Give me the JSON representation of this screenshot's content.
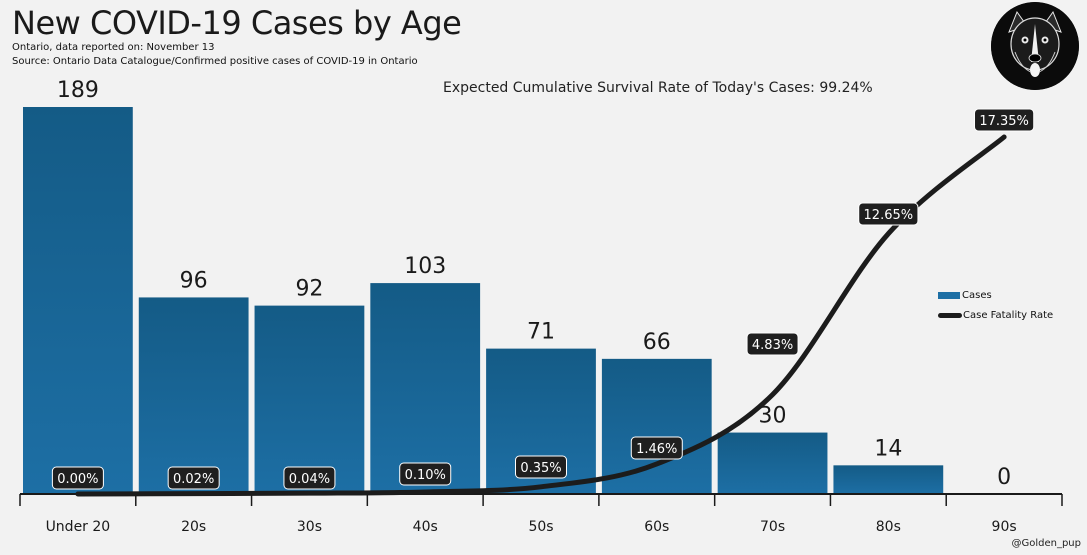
{
  "header": {
    "title": "New COVID-19 Cases by Age",
    "subtitle": "Ontario, data reported on: November 13",
    "source": "Source: Ontario Data Catalogue/Confirmed positive cases of COVID-19 in Ontario"
  },
  "annotation": "Expected Cumulative Survival Rate of Today's Cases: 99.24%",
  "watermark": "@Golden_pup",
  "logo_icon": "dog-logo-icon",
  "legend": {
    "placement": "right",
    "items": [
      {
        "label": "Cases",
        "kind": "bar"
      },
      {
        "label": "Case Fatality Rate",
        "kind": "line"
      }
    ]
  },
  "colors": {
    "bar_top": "#145b86",
    "bar_bottom": "#1d6fa5",
    "line": "#1c1c1c",
    "label_box": "#1f1f1f",
    "label_text": "#ffffff",
    "background": "#f2f2f2"
  },
  "chart_data": {
    "type": "bar",
    "categories": [
      "Under 20",
      "20s",
      "30s",
      "40s",
      "50s",
      "60s",
      "70s",
      "80s",
      "90s"
    ],
    "series": [
      {
        "name": "Cases",
        "type": "bar",
        "values": [
          189,
          96,
          92,
          103,
          71,
          66,
          30,
          14,
          0
        ],
        "labels": [
          "189",
          "96",
          "92",
          "103",
          "71",
          "66",
          "30",
          "14",
          "0"
        ]
      },
      {
        "name": "Case Fatality Rate",
        "type": "line",
        "values": [
          0.0,
          0.02,
          0.04,
          0.1,
          0.35,
          1.46,
          4.83,
          12.65,
          17.35
        ],
        "labels": [
          "0.00%",
          "0.02%",
          "0.04%",
          "0.10%",
          "0.35%",
          "1.46%",
          "4.83%",
          "12.65%",
          "17.35%"
        ]
      }
    ],
    "title": "New COVID-19 Cases by Age",
    "ylim": [
      0,
      189
    ],
    "grid": false
  }
}
